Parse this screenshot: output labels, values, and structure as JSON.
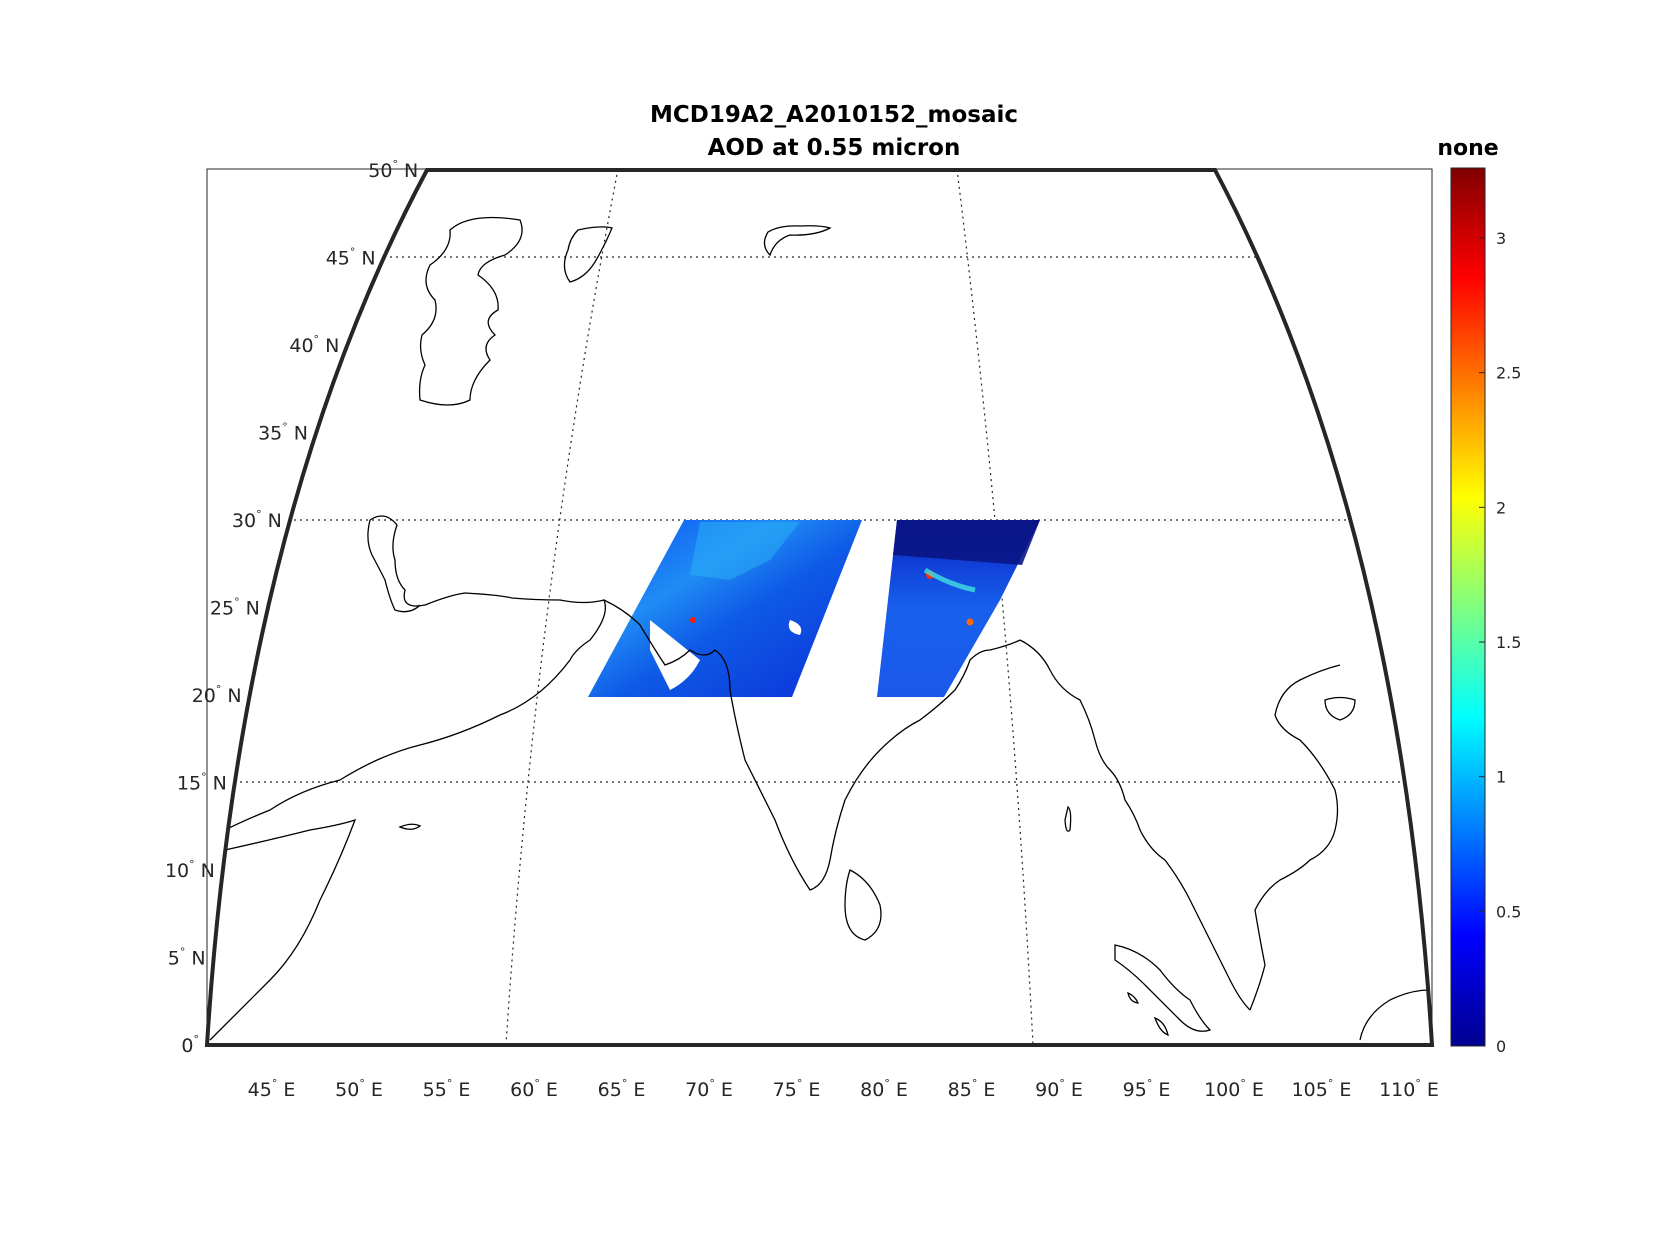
{
  "title": {
    "line1": "MCD19A2_A2010152_mosaic",
    "line2": "AOD at 0.55 micron"
  },
  "colorbar": {
    "label": "none",
    "min": 0,
    "max": 3.26,
    "ticks": [
      {
        "value": 0,
        "label": "0"
      },
      {
        "value": 0.5,
        "label": "0.5"
      },
      {
        "value": 1,
        "label": "1"
      },
      {
        "value": 1.5,
        "label": "1.5"
      },
      {
        "value": 2,
        "label": "2"
      },
      {
        "value": 2.5,
        "label": "2.5"
      },
      {
        "value": 3,
        "label": "3"
      }
    ],
    "colormap": "jet"
  },
  "map": {
    "lon_range": [
      42,
      112
    ],
    "lat_range": [
      0,
      50
    ],
    "gridlines": "dotted",
    "lat_labels": [
      {
        "value": 50,
        "num": "50",
        "dir": "N"
      },
      {
        "value": 45,
        "num": "45",
        "dir": "N"
      },
      {
        "value": 40,
        "num": "40",
        "dir": "N"
      },
      {
        "value": 35,
        "num": "35",
        "dir": "N"
      },
      {
        "value": 30,
        "num": "30",
        "dir": "N"
      },
      {
        "value": 25,
        "num": "25",
        "dir": "N"
      },
      {
        "value": 20,
        "num": "20",
        "dir": "N"
      },
      {
        "value": 15,
        "num": "15",
        "dir": "N"
      },
      {
        "value": 10,
        "num": "10",
        "dir": "N"
      },
      {
        "value": 5,
        "num": "5",
        "dir": "N"
      },
      {
        "value": 0,
        "num": "0",
        "dir": ""
      }
    ],
    "lon_labels": [
      {
        "value": 45,
        "num": "45",
        "dir": "E"
      },
      {
        "value": 50,
        "num": "50",
        "dir": "E"
      },
      {
        "value": 55,
        "num": "55",
        "dir": "E"
      },
      {
        "value": 60,
        "num": "60",
        "dir": "E"
      },
      {
        "value": 65,
        "num": "65",
        "dir": "E"
      },
      {
        "value": 70,
        "num": "70",
        "dir": "E"
      },
      {
        "value": 75,
        "num": "75",
        "dir": "E"
      },
      {
        "value": 80,
        "num": "80",
        "dir": "E"
      },
      {
        "value": 85,
        "num": "85",
        "dir": "E"
      },
      {
        "value": 90,
        "num": "90",
        "dir": "E"
      },
      {
        "value": 95,
        "num": "95",
        "dir": "E"
      },
      {
        "value": 100,
        "num": "100",
        "dir": "E"
      },
      {
        "value": 105,
        "num": "105",
        "dir": "E"
      },
      {
        "value": 110,
        "num": "110",
        "dir": "E"
      }
    ],
    "swaths": [
      {
        "name": "west-swath",
        "lat_range": [
          20,
          30
        ],
        "typical_aod": 0.4
      },
      {
        "name": "east-swath",
        "lat_range": [
          20,
          30
        ],
        "typical_aod": 0.35
      }
    ]
  },
  "colors": {
    "frame": "#262626",
    "coastline": "#000000",
    "grid": "#262626"
  }
}
